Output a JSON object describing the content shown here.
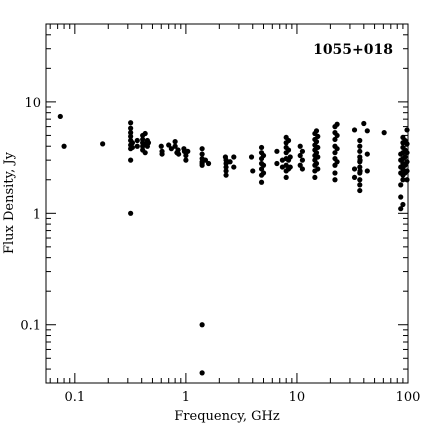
{
  "chart_data": {
    "type": "scatter",
    "title": "1055+018",
    "xlabel": "Frequency, GHz",
    "ylabel": "Flux Density, Jy",
    "x_scale": "log",
    "y_scale": "log",
    "xlim": [
      0.055,
      100
    ],
    "ylim": [
      0.03,
      50
    ],
    "x_ticks": [
      {
        "value": 0.1,
        "label": "0.1"
      },
      {
        "value": 1,
        "label": "1"
      },
      {
        "value": 10,
        "label": "10"
      },
      {
        "value": 100,
        "label": "100"
      }
    ],
    "y_ticks": [
      {
        "value": 0.1,
        "label": "0.1"
      },
      {
        "value": 1,
        "label": "1"
      },
      {
        "value": 10,
        "label": "10"
      }
    ],
    "grid": false,
    "legend": "none",
    "marker_color": "#000000",
    "series": [
      {
        "points": [
          [
            0.074,
            7.4
          ],
          [
            0.08,
            4.0
          ],
          [
            0.178,
            4.2
          ],
          [
            0.318,
            6.5
          ],
          [
            0.318,
            5.8
          ],
          [
            0.318,
            5.3
          ],
          [
            0.318,
            4.9
          ],
          [
            0.318,
            4.5
          ],
          [
            0.318,
            4.1
          ],
          [
            0.318,
            3.8
          ],
          [
            0.318,
            3.0
          ],
          [
            0.318,
            1.0
          ],
          [
            0.33,
            4.3
          ],
          [
            0.33,
            3.9
          ],
          [
            0.365,
            4.5
          ],
          [
            0.365,
            4.0
          ],
          [
            0.408,
            5.0
          ],
          [
            0.408,
            4.6
          ],
          [
            0.408,
            4.3
          ],
          [
            0.408,
            4.0
          ],
          [
            0.408,
            3.7
          ],
          [
            0.43,
            5.2
          ],
          [
            0.43,
            4.2
          ],
          [
            0.43,
            3.5
          ],
          [
            0.45,
            4.5
          ],
          [
            0.45,
            4.0
          ],
          [
            0.46,
            4.3
          ],
          [
            0.6,
            4.0
          ],
          [
            0.61,
            3.6
          ],
          [
            0.61,
            3.4
          ],
          [
            0.7,
            4.1
          ],
          [
            0.74,
            3.8
          ],
          [
            0.8,
            4.4
          ],
          [
            0.8,
            4.0
          ],
          [
            0.83,
            3.5
          ],
          [
            0.85,
            3.7
          ],
          [
            0.86,
            3.4
          ],
          [
            0.96,
            3.8
          ],
          [
            0.97,
            3.6
          ],
          [
            1.0,
            3.5
          ],
          [
            1.0,
            3.3
          ],
          [
            1.04,
            3.6
          ],
          [
            1.0,
            3.0
          ],
          [
            1.4,
            3.8
          ],
          [
            1.4,
            3.4
          ],
          [
            1.4,
            3.1
          ],
          [
            1.4,
            2.9
          ],
          [
            1.4,
            2.8
          ],
          [
            1.4,
            2.7
          ],
          [
            1.4,
            0.1
          ],
          [
            1.4,
            0.037
          ],
          [
            1.5,
            3.0
          ],
          [
            1.6,
            2.8
          ],
          [
            2.27,
            3.2
          ],
          [
            2.3,
            3.0
          ],
          [
            2.3,
            2.8
          ],
          [
            2.3,
            2.6
          ],
          [
            2.3,
            2.4
          ],
          [
            2.3,
            2.2
          ],
          [
            2.5,
            2.9
          ],
          [
            2.7,
            3.2
          ],
          [
            2.7,
            2.6
          ],
          [
            3.9,
            3.2
          ],
          [
            4.0,
            2.4
          ],
          [
            4.8,
            3.9
          ],
          [
            4.8,
            3.5
          ],
          [
            4.8,
            3.1
          ],
          [
            4.8,
            2.8
          ],
          [
            4.8,
            2.5
          ],
          [
            4.8,
            2.2
          ],
          [
            4.8,
            1.9
          ],
          [
            5.0,
            3.3
          ],
          [
            5.0,
            2.7
          ],
          [
            5.0,
            2.3
          ],
          [
            6.6,
            3.6
          ],
          [
            6.6,
            2.8
          ],
          [
            7.4,
            3.0
          ],
          [
            7.4,
            2.6
          ],
          [
            8.0,
            4.8
          ],
          [
            8.0,
            4.3
          ],
          [
            8.0,
            3.9
          ],
          [
            8.0,
            3.5
          ],
          [
            8.0,
            3.1
          ],
          [
            8.0,
            2.7
          ],
          [
            8.0,
            2.4
          ],
          [
            8.0,
            2.1
          ],
          [
            8.4,
            4.5
          ],
          [
            8.4,
            3.7
          ],
          [
            8.4,
            3.0
          ],
          [
            8.4,
            2.5
          ],
          [
            8.7,
            3.2
          ],
          [
            8.7,
            2.6
          ],
          [
            10.7,
            4.0
          ],
          [
            10.7,
            3.3
          ],
          [
            10.7,
            2.7
          ],
          [
            11.2,
            3.6
          ],
          [
            11.2,
            3.0
          ],
          [
            11.2,
            2.5
          ],
          [
            14.5,
            5.2
          ],
          [
            14.5,
            4.6
          ],
          [
            14.5,
            4.1
          ],
          [
            14.5,
            3.7
          ],
          [
            14.5,
            3.3
          ],
          [
            14.5,
            3.0
          ],
          [
            14.5,
            2.7
          ],
          [
            14.5,
            2.4
          ],
          [
            14.5,
            2.1
          ],
          [
            15.0,
            5.5
          ],
          [
            15.0,
            4.4
          ],
          [
            15.0,
            3.5
          ],
          [
            15.0,
            2.8
          ],
          [
            15.4,
            4.9
          ],
          [
            15.4,
            3.9
          ],
          [
            15.4,
            3.2
          ],
          [
            15.4,
            2.5
          ],
          [
            22.0,
            6.0
          ],
          [
            22.0,
            5.3
          ],
          [
            22.0,
            4.6
          ],
          [
            22.0,
            4.0
          ],
          [
            22.0,
            3.5
          ],
          [
            22.0,
            3.1
          ],
          [
            22.0,
            2.7
          ],
          [
            22.0,
            2.3
          ],
          [
            22.0,
            2.0
          ],
          [
            23.0,
            6.3
          ],
          [
            23.0,
            5.0
          ],
          [
            23.0,
            3.8
          ],
          [
            23.0,
            2.9
          ],
          [
            33.0,
            5.6
          ],
          [
            33.0,
            2.5
          ],
          [
            33.0,
            2.1
          ],
          [
            36.8,
            4.5
          ],
          [
            36.8,
            4.0
          ],
          [
            36.8,
            3.6
          ],
          [
            36.8,
            3.2
          ],
          [
            36.8,
            2.9
          ],
          [
            36.8,
            2.6
          ],
          [
            36.8,
            2.3
          ],
          [
            36.8,
            2.0
          ],
          [
            36.8,
            1.8
          ],
          [
            36.8,
            1.6
          ],
          [
            37.0,
            3.0
          ],
          [
            37.0,
            2.4
          ],
          [
            40.0,
            6.4
          ],
          [
            43.0,
            5.5
          ],
          [
            43.0,
            3.4
          ],
          [
            43.0,
            2.4
          ],
          [
            61.0,
            5.3
          ],
          [
            86.0,
            3.4
          ],
          [
            86.0,
            3.0
          ],
          [
            86.0,
            2.6
          ],
          [
            86.0,
            2.3
          ],
          [
            86.0,
            1.8
          ],
          [
            86.0,
            1.4
          ],
          [
            86.0,
            1.1
          ],
          [
            90.0,
            4.8
          ],
          [
            90.0,
            4.3
          ],
          [
            90.0,
            3.9
          ],
          [
            90.0,
            3.5
          ],
          [
            90.0,
            3.1
          ],
          [
            90.0,
            2.8
          ],
          [
            90.0,
            2.5
          ],
          [
            90.0,
            2.2
          ],
          [
            90.0,
            2.0
          ],
          [
            90.0,
            1.2
          ],
          [
            94.0,
            4.5
          ],
          [
            94.0,
            3.7
          ],
          [
            94.0,
            3.2
          ],
          [
            94.0,
            2.7
          ],
          [
            94.0,
            2.3
          ],
          [
            98.0,
            5.6
          ],
          [
            98.0,
            4.2
          ],
          [
            98.0,
            3.5
          ],
          [
            98.0,
            2.9
          ],
          [
            98.0,
            2.4
          ],
          [
            98.0,
            2.0
          ]
        ]
      }
    ]
  }
}
